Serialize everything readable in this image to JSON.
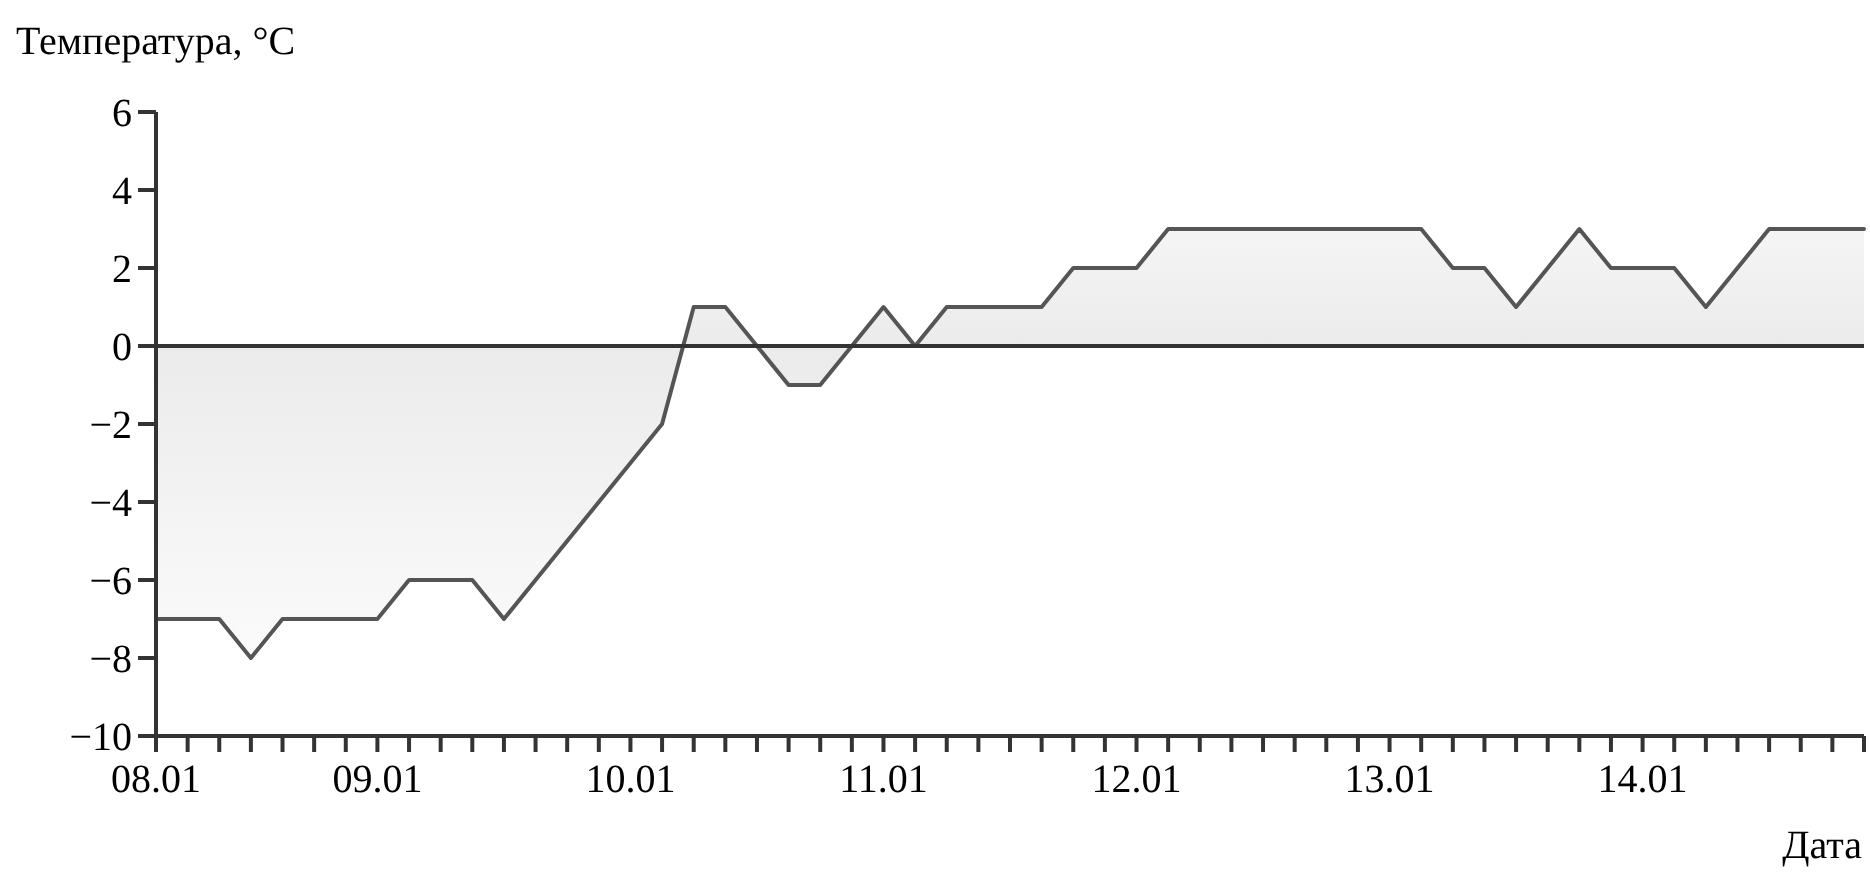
{
  "chart_data": {
    "type": "area",
    "ylabel": "Температура, °C",
    "xlabel": "Дата",
    "categories": [
      "08.01",
      null,
      null,
      null,
      null,
      null,
      null,
      "09.01",
      null,
      null,
      null,
      null,
      null,
      null,
      null,
      "10.01",
      null,
      null,
      null,
      null,
      null,
      null,
      null,
      "11.01",
      null,
      null,
      null,
      null,
      null,
      null,
      null,
      "12.01",
      null,
      null,
      null,
      null,
      null,
      null,
      null,
      "13.01",
      null,
      null,
      null,
      null,
      null,
      null,
      null,
      "14.01",
      null,
      null,
      null,
      null,
      null,
      null,
      null
    ],
    "series": [
      {
        "color": "#555555",
        "values": [
          -7,
          -7,
          -7,
          -8,
          -7,
          -7,
          -7,
          -7,
          -6,
          -6,
          -6,
          -7,
          -6,
          -5,
          -4,
          -3,
          -2,
          1,
          1,
          0,
          -1,
          -1,
          0,
          1,
          0,
          1,
          1,
          1,
          1,
          2,
          2,
          2,
          3,
          3,
          3,
          3,
          3,
          3,
          3,
          3,
          3,
          2,
          2,
          1,
          2,
          3,
          2,
          2,
          2,
          1,
          2,
          3,
          3,
          3,
          3
        ]
      }
    ],
    "ylim": [
      -10,
      6
    ],
    "yticks": [
      -10,
      -8,
      -6,
      -4,
      -2,
      0,
      2,
      4,
      6
    ],
    "ref_lines": [
      {
        "axis": "y",
        "value": 0,
        "color": "#333333"
      }
    ],
    "marker": "none",
    "line_style": "solid"
  }
}
